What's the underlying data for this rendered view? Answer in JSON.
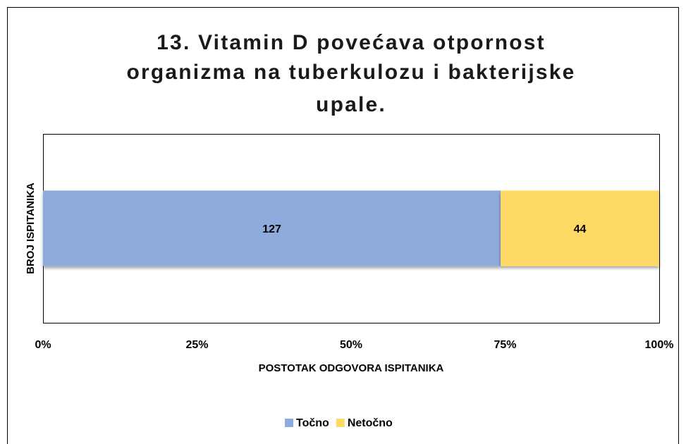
{
  "chart_data": {
    "type": "bar",
    "orientation": "horizontal",
    "stacked": "percent",
    "title": [
      "13. Vitamin D povećava otpornost",
      "organizma na tuberkulozu i bakterijske",
      "upale."
    ],
    "x_label": "POSTOTAK ODGOVORA ISPITANIKA",
    "y_label": "BROJ ISPITANIKA",
    "categories": [
      null
    ],
    "series": [
      {
        "name": "Točno",
        "color": "#8faadc",
        "values": [
          127
        ]
      },
      {
        "name": "Netočno",
        "color": "#ffd966",
        "values": [
          44
        ]
      }
    ],
    "xlim": [
      0,
      100
    ],
    "xticks": [
      {
        "value": 0,
        "label": "0%"
      },
      {
        "value": 25,
        "label": "25%"
      },
      {
        "value": 50,
        "label": "50%"
      },
      {
        "value": 75,
        "label": "75%"
      },
      {
        "value": 100,
        "label": "100%"
      }
    ],
    "legend": "bottom",
    "grid": false
  }
}
